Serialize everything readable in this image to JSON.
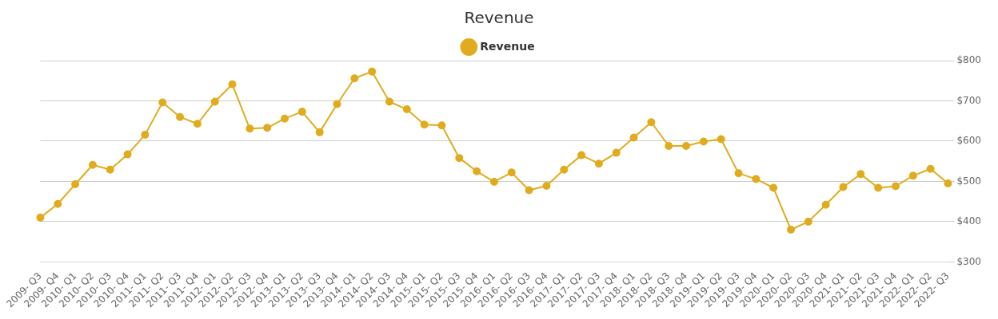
{
  "chart_data": {
    "type": "line",
    "title": "Revenue",
    "categories": [
      "2009- Q3",
      "2009- Q4",
      "2010- Q1",
      "2010- Q2",
      "2010- Q3",
      "2010- Q4",
      "2011- Q1",
      "2011- Q2",
      "2011- Q3",
      "2011- Q4",
      "2012- Q1",
      "2012- Q2",
      "2012- Q3",
      "2012- Q4",
      "2013- Q1",
      "2013- Q2",
      "2013- Q3",
      "2013- Q4",
      "2014- Q1",
      "2014- Q2",
      "2014- Q3",
      "2014- Q4",
      "2015- Q1",
      "2015- Q2",
      "2015- Q3",
      "2015- Q4",
      "2016- Q1",
      "2016- Q2",
      "2016- Q3",
      "2016- Q4",
      "2017- Q1",
      "2017- Q2",
      "2017- Q3",
      "2017- Q4",
      "2018- Q1",
      "2018- Q2",
      "2018- Q3",
      "2018- Q4",
      "2019- Q1",
      "2019- Q2",
      "2019- Q3",
      "2019- Q4",
      "2020- Q1",
      "2020- Q2",
      "2020- Q3",
      "2020- Q4",
      "2021- Q1",
      "2021- Q2",
      "2021- Q3",
      "2021- Q4",
      "2022- Q1",
      "2022- Q2",
      "2022- Q3"
    ],
    "series": [
      {
        "name": "Revenue",
        "color": "#e0ac1e",
        "values": [
          410,
          444,
          493,
          541,
          529,
          567,
          616,
          696,
          660,
          643,
          698,
          741,
          631,
          633,
          656,
          673,
          622,
          692,
          756,
          773,
          698,
          679,
          641,
          639,
          558,
          525,
          499,
          522,
          478,
          489,
          529,
          565,
          544,
          571,
          609,
          647,
          588,
          588,
          599,
          605,
          520,
          506,
          484,
          380,
          400,
          442,
          486,
          518,
          484,
          488,
          514,
          531,
          495
        ]
      }
    ],
    "ylim": [
      300,
      800
    ],
    "yticks": [
      {
        "value": 300,
        "label": "$300"
      },
      {
        "value": 400,
        "label": "$400"
      },
      {
        "value": 500,
        "label": "$500"
      },
      {
        "value": 600,
        "label": "$600"
      },
      {
        "value": 700,
        "label": "$700"
      },
      {
        "value": 800,
        "label": "$800"
      }
    ],
    "grid": "y",
    "legend": "top",
    "marker": "circle",
    "line_style": "solid"
  }
}
